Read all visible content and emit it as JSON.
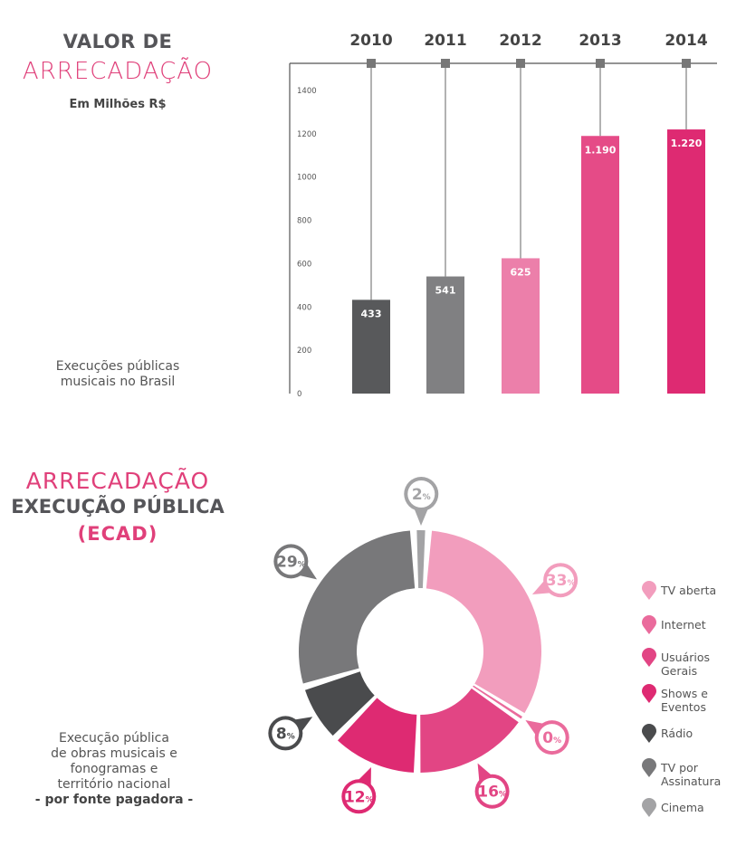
{
  "top": {
    "title": "VALOR DE",
    "accent_title": "ARRECADAÇÃO",
    "unit": "Em Milhões R$",
    "note_line1": "Execuções públicas",
    "note_line2": "musicais no Brasil"
  },
  "bottom": {
    "accent_title": "ARRECADAÇÃO",
    "title": "EXECUÇÃO PÚBLICA",
    "subtitle": "(ECAD)",
    "note_line1": "Execução pública",
    "note_line2": "de obras musicais e",
    "note_line3": "fonogramas e",
    "note_line4": "território nacional",
    "note_line5": "- por fonte pagadora -"
  },
  "chart_data": [
    {
      "type": "bar",
      "categories": [
        "2010",
        "2011",
        "2012",
        "2013",
        "2014"
      ],
      "values": [
        433,
        541,
        625,
        1190,
        1220
      ],
      "value_labels": [
        "433",
        "541",
        "625",
        "1.190",
        "1.220"
      ],
      "yticks": [
        "0",
        "200",
        "400",
        "600",
        "800",
        "1000",
        "1200",
        "1400"
      ],
      "ylim": [
        0,
        1400
      ],
      "colors": [
        "#58595b",
        "#808082",
        "#ec7faa",
        "#e54b87",
        "#de2a72"
      ]
    },
    {
      "type": "pie",
      "style": "donut",
      "labels": [
        "TV aberta",
        "Internet",
        "Usuários Gerais",
        "Shows e Eventos",
        "Rádio",
        "TV por Assinatura",
        "Cinema"
      ],
      "values": [
        33,
        0,
        16,
        12,
        8,
        29,
        2
      ],
      "value_labels": [
        "33",
        "0",
        "16",
        "12",
        "8",
        "29",
        "2"
      ],
      "percent_sign": "%",
      "colors": [
        "#f29dbd",
        "#ea6b9c",
        "#e24584",
        "#de2a72",
        "#4a4b4d",
        "#78787a",
        "#a3a3a5"
      ],
      "legend_position": "right"
    }
  ]
}
